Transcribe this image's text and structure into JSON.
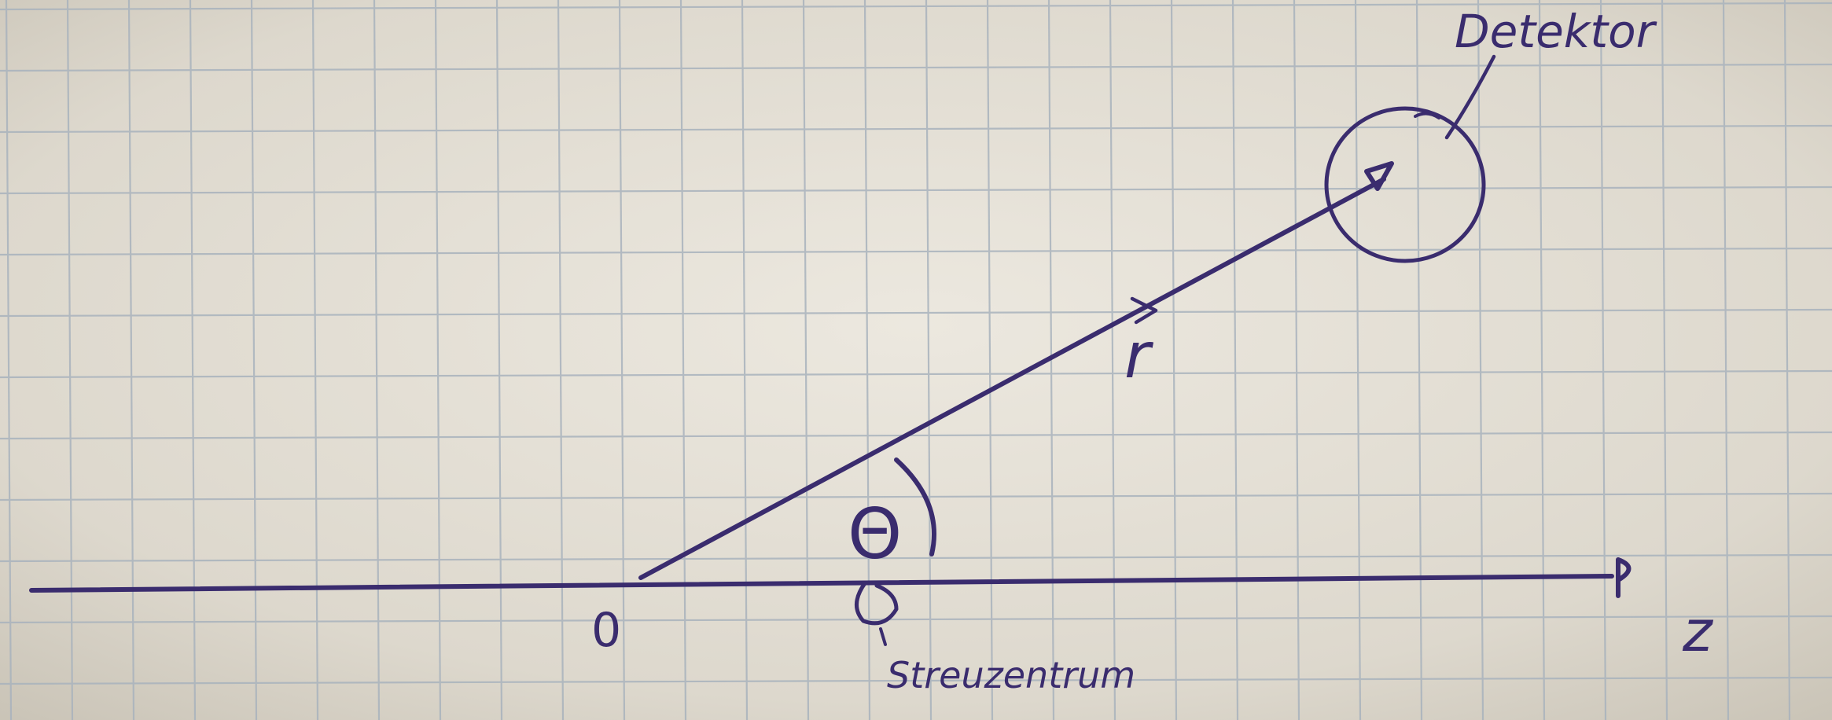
{
  "labels": {
    "detector": "Detektor",
    "vector_r": "r",
    "theta": "Θ",
    "origin": "0",
    "axis_z": "z",
    "scattering_center": "Streuzentrum"
  },
  "colors": {
    "paper": "#e4e0d7",
    "grid": "#a9b3bd",
    "ink": "#3a2c6e"
  }
}
